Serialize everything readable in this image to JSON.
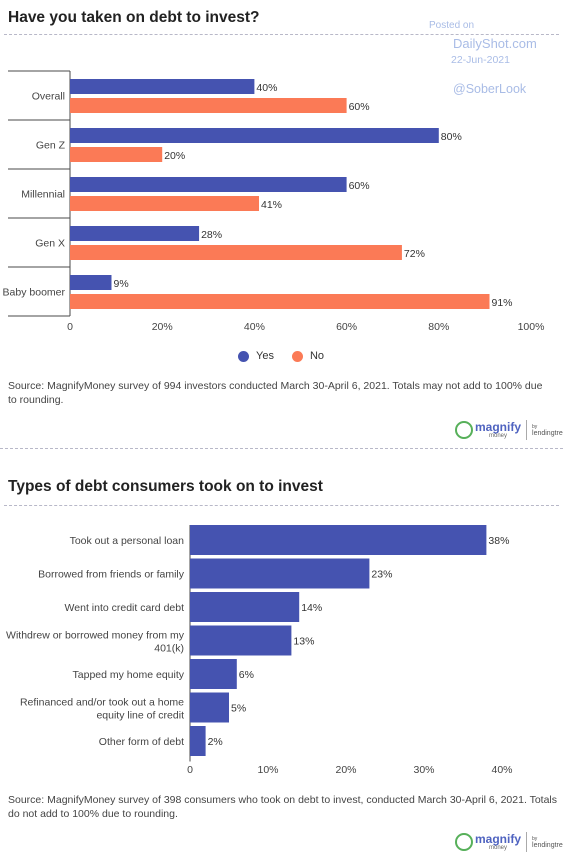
{
  "watermark": {
    "posted": "Posted on",
    "site": "DailyShot.com",
    "date": "22-Jun-2021",
    "handle": "@SoberLook"
  },
  "colors": {
    "yes": "#4553b0",
    "no": "#fb7a56",
    "bar": "#4553b0"
  },
  "logo": {
    "brand": "magnify",
    "brand_sub": "money",
    "partner_by": "by",
    "partner": "lendingtree"
  },
  "chart1": {
    "source": "Source: MagnifyMoney survey of 994 investors conducted March 30-April 6, 2021. Totals may not add to 100% due to rounding."
  },
  "chart2": {
    "source": "Source: MagnifyMoney survey of 398 consumers who took on debt to invest, conducted March 30-April 6, 2021. Totals do not add to 100% due to rounding."
  },
  "chart_data": [
    {
      "type": "bar",
      "orientation": "horizontal",
      "title": "Have you taken on debt to invest?",
      "categories": [
        "Overall",
        "Gen Z",
        "Millennial",
        "Gen X",
        "Baby boomer"
      ],
      "series": [
        {
          "name": "Yes",
          "values": [
            40,
            80,
            60,
            28,
            9
          ],
          "labels": [
            "40%",
            "80%",
            "60%",
            "28%",
            "9%"
          ]
        },
        {
          "name": "No",
          "values": [
            60,
            20,
            41,
            72,
            91
          ],
          "labels": [
            "60%",
            "20%",
            "41%",
            "72%",
            "91%"
          ]
        }
      ],
      "xlim": [
        0,
        100
      ],
      "xticks": [
        0,
        20,
        40,
        60,
        80,
        100
      ],
      "xtick_labels": [
        "0",
        "20%",
        "40%",
        "60%",
        "80%",
        "100%"
      ],
      "legend_position": "bottom-center",
      "grid": false
    },
    {
      "type": "bar",
      "orientation": "horizontal",
      "title": "Types of debt consumers took on to invest",
      "categories": [
        [
          "Took out a personal loan"
        ],
        [
          "Borrowed from friends or family"
        ],
        [
          "Went into credit card debt"
        ],
        [
          "Withdrew or borrowed money from my",
          "401(k)"
        ],
        [
          "Tapped my home equity"
        ],
        [
          "Refinanced and/or took out a home",
          "equity line of credit"
        ],
        [
          "Other form of debt"
        ]
      ],
      "values": [
        38,
        23,
        14,
        13,
        6,
        5,
        2
      ],
      "labels": [
        "38%",
        "23%",
        "14%",
        "13%",
        "6%",
        "5%",
        "2%"
      ],
      "xlim": [
        0,
        40
      ],
      "xticks": [
        0,
        10,
        20,
        30,
        40
      ],
      "xtick_labels": [
        "0",
        "10%",
        "20%",
        "30%",
        "40%"
      ],
      "grid": false
    }
  ]
}
